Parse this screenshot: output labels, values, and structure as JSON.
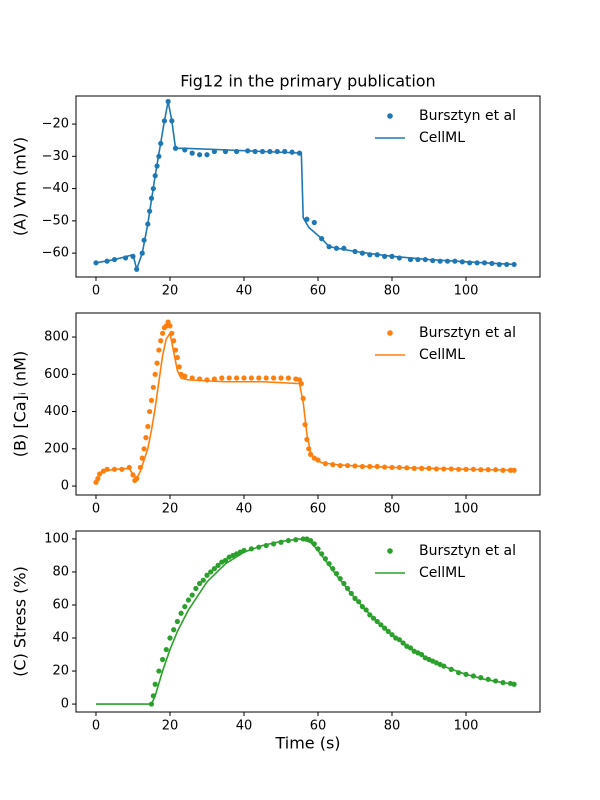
{
  "chart_data": [
    {
      "type": "line",
      "title": "Fig12 in the primary publication",
      "ylabel": "(A) Vm (mV)",
      "xlim": [
        -5.4,
        120
      ],
      "ylim": [
        -67.4,
        -11.3
      ],
      "xticks": [
        0,
        20,
        40,
        60,
        80,
        100
      ],
      "yticks": [
        {
          "value": -60,
          "label": "−60"
        },
        {
          "value": -50,
          "label": "−50"
        },
        {
          "value": -40,
          "label": "−40"
        },
        {
          "value": -30,
          "label": "−30"
        },
        {
          "value": -20,
          "label": "−20"
        }
      ],
      "legend": "upper right",
      "series": [
        {
          "name": "Bursztyn et al",
          "color": "#1f77b4",
          "mode": "markers",
          "x": [
            0,
            3,
            5,
            8,
            10,
            11,
            12.5,
            13,
            14,
            14.5,
            15,
            15.5,
            16,
            16.5,
            17,
            17.5,
            18.5,
            19.5,
            20.5,
            21.5,
            24,
            26,
            28,
            30,
            32,
            35,
            38,
            41,
            43,
            45,
            47,
            49,
            51,
            53,
            55,
            57,
            59,
            61,
            63,
            65,
            67,
            70,
            72,
            74,
            76,
            78,
            80,
            82,
            85,
            87,
            89,
            91,
            93,
            95,
            97,
            99,
            101,
            103,
            105,
            107,
            109,
            111,
            113
          ],
          "values": [
            -63,
            -62.5,
            -62,
            -61.5,
            -61,
            -65,
            -60,
            -56,
            -51,
            -47,
            -43,
            -40,
            -36,
            -33,
            -30,
            -26,
            -19,
            -13,
            -19,
            -27.5,
            -28,
            -29,
            -29.5,
            -29.5,
            -28.5,
            -28.5,
            -28.5,
            -28.3,
            -28.5,
            -28.5,
            -28.5,
            -28.5,
            -28.5,
            -28.7,
            -29,
            -49.5,
            -50.5,
            -55.5,
            -58,
            -58.5,
            -58.5,
            -59.5,
            -60,
            -60.5,
            -60.5,
            -61,
            -61,
            -61.5,
            -62,
            -62,
            -62,
            -62.3,
            -62.5,
            -62.5,
            -62.5,
            -62.7,
            -63,
            -63,
            -63,
            -63.2,
            -63.5,
            -63.5,
            -63.5
          ]
        },
        {
          "name": "CellML",
          "color": "#1f77b4",
          "mode": "line",
          "x": [
            0,
            5,
            10,
            11,
            12.5,
            14,
            16,
            18.5,
            19.5,
            20.5,
            21.5,
            24,
            35,
            45,
            55.5,
            56,
            57.5,
            61,
            63,
            70,
            80,
            90,
            100,
            113
          ],
          "values": [
            -63,
            -62,
            -60.5,
            -65,
            -60,
            -51,
            -36,
            -19,
            -13,
            -19,
            -27.5,
            -27.5,
            -28,
            -28.5,
            -29,
            -49,
            -52,
            -55.5,
            -58,
            -59.5,
            -61,
            -62,
            -62.7,
            -63.5
          ]
        }
      ]
    },
    {
      "type": "line",
      "ylabel": "(B) [Ca]ᵢ (nM)",
      "xlim": [
        -5.4,
        120
      ],
      "ylim": [
        -48,
        929
      ],
      "xticks": [
        0,
        20,
        40,
        60,
        80,
        100
      ],
      "yticks": [
        0,
        200,
        400,
        600,
        800
      ],
      "legend": "upper right",
      "series": [
        {
          "name": "Bursztyn et al",
          "color": "#ff7f0e",
          "mode": "markers",
          "x": [
            0,
            0.5,
            1,
            2,
            3,
            5,
            7,
            9,
            10,
            10.5,
            11,
            12,
            12.5,
            13,
            13.5,
            14,
            14.5,
            15,
            15.5,
            16,
            16.5,
            17,
            17.5,
            18,
            18.5,
            19,
            19.5,
            20,
            20.5,
            21,
            21.5,
            22,
            22.5,
            23,
            24,
            26,
            28,
            30,
            32,
            34,
            36,
            38,
            40,
            42,
            44,
            46,
            48,
            50,
            52,
            54,
            55,
            55.5,
            56,
            56.5,
            57,
            57.5,
            58,
            59,
            60,
            62,
            64,
            66,
            68,
            70,
            72,
            74,
            76,
            78,
            80,
            82,
            84,
            86,
            88,
            90,
            92,
            94,
            96,
            98,
            100,
            102,
            104,
            106,
            108,
            110,
            112,
            113
          ],
          "values": [
            20,
            40,
            65,
            80,
            90,
            90,
            90,
            100,
            60,
            30,
            40,
            100,
            150,
            200,
            260,
            320,
            400,
            460,
            530,
            600,
            660,
            730,
            780,
            820,
            850,
            860,
            880,
            860,
            820,
            780,
            730,
            690,
            640,
            600,
            590,
            580,
            575,
            570,
            575,
            580,
            580,
            580,
            580,
            580,
            580,
            580,
            580,
            580,
            580,
            575,
            570,
            550,
            470,
            330,
            250,
            200,
            170,
            150,
            140,
            120,
            115,
            110,
            110,
            108,
            105,
            105,
            105,
            102,
            100,
            100,
            98,
            95,
            95,
            95,
            92,
            92,
            92,
            90,
            90,
            90,
            88,
            88,
            88,
            85,
            85,
            85
          ]
        },
        {
          "name": "CellML",
          "color": "#ff7f0e",
          "mode": "line",
          "x": [
            0,
            2,
            5,
            9,
            10,
            11,
            12,
            14,
            15,
            16,
            17,
            18,
            19,
            20,
            21,
            22,
            23,
            25,
            35,
            45,
            55,
            56,
            57,
            58,
            59,
            61,
            65,
            70,
            80,
            90,
            100,
            113
          ],
          "values": [
            40,
            80,
            90,
            95,
            60,
            40,
            80,
            200,
            300,
            420,
            560,
            700,
            790,
            820,
            720,
            620,
            580,
            570,
            560,
            560,
            550,
            450,
            280,
            180,
            150,
            125,
            115,
            108,
            100,
            95,
            90,
            85
          ]
        }
      ]
    },
    {
      "type": "line",
      "ylabel": "(C) Stress (%)",
      "xlabel": "Time (s)",
      "xlim": [
        -5.4,
        120
      ],
      "ylim": [
        -4.8,
        104.8
      ],
      "xticks": [
        0,
        20,
        40,
        60,
        80,
        100
      ],
      "yticks": [
        0,
        20,
        40,
        60,
        80,
        100
      ],
      "legend": "upper right",
      "series": [
        {
          "name": "Bursztyn et al",
          "color": "#2ca02c",
          "mode": "markers",
          "x": [
            15,
            15.5,
            16,
            17,
            18,
            19,
            20,
            21,
            22,
            23,
            24,
            25,
            26,
            27,
            28,
            29,
            30,
            31,
            32,
            33,
            34,
            35,
            36,
            37,
            38,
            39,
            40,
            42,
            44,
            46,
            48,
            50,
            52,
            54,
            56,
            57,
            58,
            59,
            60,
            61,
            62,
            63,
            64,
            65,
            66,
            67,
            68,
            69,
            70,
            71,
            72,
            73,
            74,
            75,
            76,
            77,
            78,
            79,
            80,
            81,
            82,
            83,
            84,
            85,
            86,
            87,
            88,
            89,
            90,
            91,
            92,
            93,
            94,
            96,
            98,
            100,
            102,
            104,
            106,
            108,
            110,
            112,
            113
          ],
          "values": [
            0,
            5,
            12,
            20,
            27,
            33,
            40,
            45,
            50,
            55,
            59,
            63,
            66,
            70,
            73,
            75,
            78,
            80,
            82,
            84,
            86,
            87,
            89,
            90,
            91,
            92,
            93,
            94,
            95,
            96,
            97,
            98,
            99,
            99.5,
            100,
            100,
            99,
            97,
            94,
            91,
            88,
            85,
            82,
            79,
            76,
            73,
            70,
            67,
            64,
            62,
            59,
            57,
            54,
            52,
            50,
            48,
            46,
            44,
            42,
            40,
            39,
            37,
            35,
            34,
            32,
            31,
            30,
            28,
            27,
            26,
            25,
            24,
            23,
            21,
            19,
            18,
            17,
            16,
            15,
            14,
            13,
            12.5,
            12
          ]
        },
        {
          "name": "CellML",
          "color": "#2ca02c",
          "mode": "line",
          "x": [
            0,
            15,
            16,
            18,
            20,
            22,
            25,
            30,
            35,
            40,
            45,
            50,
            55,
            58,
            60,
            65,
            70,
            75,
            80,
            85,
            90,
            95,
            100,
            105,
            110,
            113
          ],
          "values": [
            0,
            0,
            5,
            20,
            33,
            44,
            57,
            74,
            85,
            92,
            96,
            98.5,
            100,
            98,
            93,
            78,
            64,
            52,
            42,
            34,
            27,
            22,
            18,
            15,
            13,
            12
          ]
        }
      ]
    }
  ]
}
